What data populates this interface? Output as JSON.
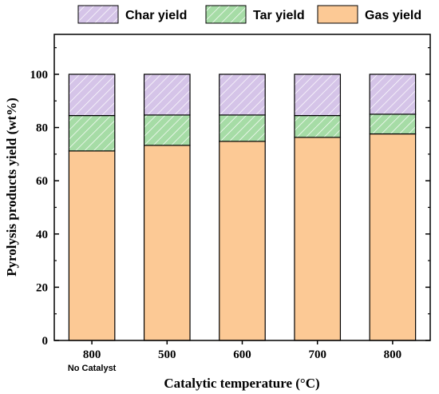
{
  "chart_data": {
    "type": "bar",
    "stacked": true,
    "categories": [
      "800",
      "500",
      "600",
      "700",
      "800"
    ],
    "category_sublabels": [
      "No Catalyst",
      "",
      "",
      "",
      ""
    ],
    "series": [
      {
        "name": "Gas yield",
        "values": [
          71.2,
          73.3,
          74.8,
          76.3,
          77.6
        ],
        "color": "#fcc995",
        "hatch": false
      },
      {
        "name": "Tar yield",
        "values": [
          13.3,
          11.4,
          9.9,
          8.2,
          7.4
        ],
        "color": "#a6dca6",
        "hatch": true
      },
      {
        "name": "Char yield",
        "values": [
          15.5,
          15.3,
          15.3,
          15.5,
          15.0
        ],
        "color": "#d5c4e8",
        "hatch": true
      }
    ],
    "legend_order": [
      "Char yield",
      "Tar yield",
      "Gas yield"
    ],
    "legend_position": "top",
    "xlabel": "Catalytic temperature (°C)",
    "ylabel": "Pyrolysis products yield (wt%)",
    "ylim": [
      0,
      115
    ],
    "yticks": [
      0,
      20,
      40,
      60,
      80,
      100
    ],
    "grid": false
  }
}
